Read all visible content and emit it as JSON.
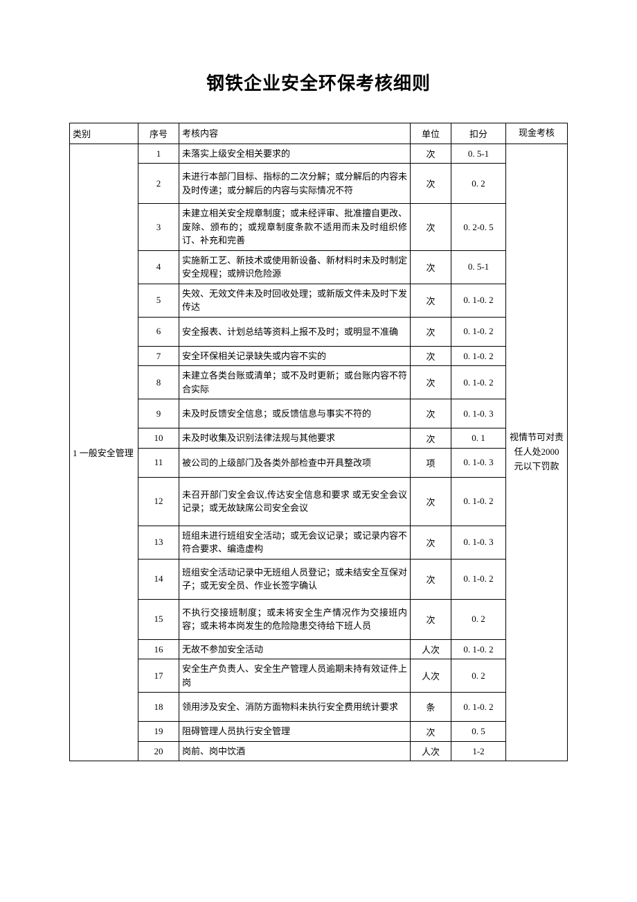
{
  "title": "钢铁企业安全环保考核细则",
  "headers": {
    "category": "类别",
    "num": "序号",
    "content": "考核内容",
    "unit": "单位",
    "deduct": "扣分",
    "cash": "现金考核"
  },
  "category": "1 一般安全管理",
  "cash_note": "视情节可对责任人处2000 元以下罚款",
  "rows": [
    {
      "num": "1",
      "content": "未落实上级安全相关要求的",
      "unit": "次",
      "deduct": "0. 5-1",
      "h": "short"
    },
    {
      "num": "2",
      "content": "未进行本部门目标、指标的二次分解；或分解后的内容未及时传递；或分解后的内容与实际情况不符",
      "unit": "次",
      "deduct": "0. 2",
      "h": "tall"
    },
    {
      "num": "3",
      "content": "未建立相关安全规章制度；或未经评审、批准擅自更改、废除、颁布的；或规章制度条款不适用而未及时组织修订、补充和完善",
      "unit": "次",
      "deduct": "0. 2-0. 5",
      "h": "tall"
    },
    {
      "num": "4",
      "content": "实施新工艺、新技术或使用新设备、新材料时未及时制定安全规程；或辨识危险源",
      "unit": "次",
      "deduct": "0. 5-1",
      "h": "mid"
    },
    {
      "num": "5",
      "content": "失效、无效文件未及时回收处理；或新版文件未及时下发传达",
      "unit": "次",
      "deduct": "0. 1-0. 2",
      "h": "mid"
    },
    {
      "num": "6",
      "content": "安全报表、计划总结等资料上报不及时；或明显不准确",
      "unit": "次",
      "deduct": "0. 1-0. 2",
      "h": "mid"
    },
    {
      "num": "7",
      "content": "安全环保相关记录缺失或内容不实的",
      "unit": "次",
      "deduct": "0. 1-0. 2",
      "h": "short"
    },
    {
      "num": "8",
      "content": "未建立各类台账或清单；或不及时更新；或台账内容不符合实际",
      "unit": "次",
      "deduct": "0. 1-0. 2",
      "h": "mid"
    },
    {
      "num": "9",
      "content": "未及时反馈安全信息；或反馈信息与事实不符的",
      "unit": "次",
      "deduct": "0. 1-0. 3",
      "h": "mid"
    },
    {
      "num": "10",
      "content": "未及时收集及识别法律法规与其他要求",
      "unit": "次",
      "deduct": "0. 1",
      "h": "short"
    },
    {
      "num": "11",
      "content": "被公司的上级部门及各类外部检查中开具整改项",
      "unit": "项",
      "deduct": "0. 1-0. 3",
      "h": "mid"
    },
    {
      "num": "12",
      "content": "未召开部门安全会议,传达安全信息和要求 或无安全会议记录；或无故缺席公司安全会议",
      "unit": "次",
      "deduct": "0. 1-0. 2",
      "h": "taller"
    },
    {
      "num": "13",
      "content": "班组未进行班组安全活动；或无会议记录；或记录内容不符合要求、编造虚构",
      "unit": "次",
      "deduct": "0. 1-0. 3",
      "h": "mid"
    },
    {
      "num": "14",
      "content": "班组安全活动记录中无班组人员登记；或未结安全互保对子；或无安全员、作业长签字确认",
      "unit": "次",
      "deduct": "0. 1-0. 2",
      "h": "tall"
    },
    {
      "num": "15",
      "content": "不执行交接班制度；或未将安全生产情况作为交接班内容；或未将本岗发生的危险隐患交待给下班人员",
      "unit": "次",
      "deduct": "0. 2",
      "h": "tall"
    },
    {
      "num": "16",
      "content": "无故不参加安全活动",
      "unit": "人次",
      "deduct": "0. 1-0. 2",
      "h": "short"
    },
    {
      "num": "17",
      "content": "安全生产负责人、安全生产管理人员逾期未持有效证件上岗",
      "unit": "人次",
      "deduct": "0. 2",
      "h": "mid"
    },
    {
      "num": "18",
      "content": "领用涉及安全、消防方面物料未执行安全费用统计要求",
      "unit": "条",
      "deduct": "0. 1-0. 2",
      "h": "mid"
    },
    {
      "num": "19",
      "content": "阻碍管理人员执行安全管理",
      "unit": "次",
      "deduct": "0. 5",
      "h": "short"
    },
    {
      "num": "20",
      "content": "岗前、岗中饮酒",
      "unit": "人次",
      "deduct": "1-2",
      "h": "short"
    }
  ]
}
